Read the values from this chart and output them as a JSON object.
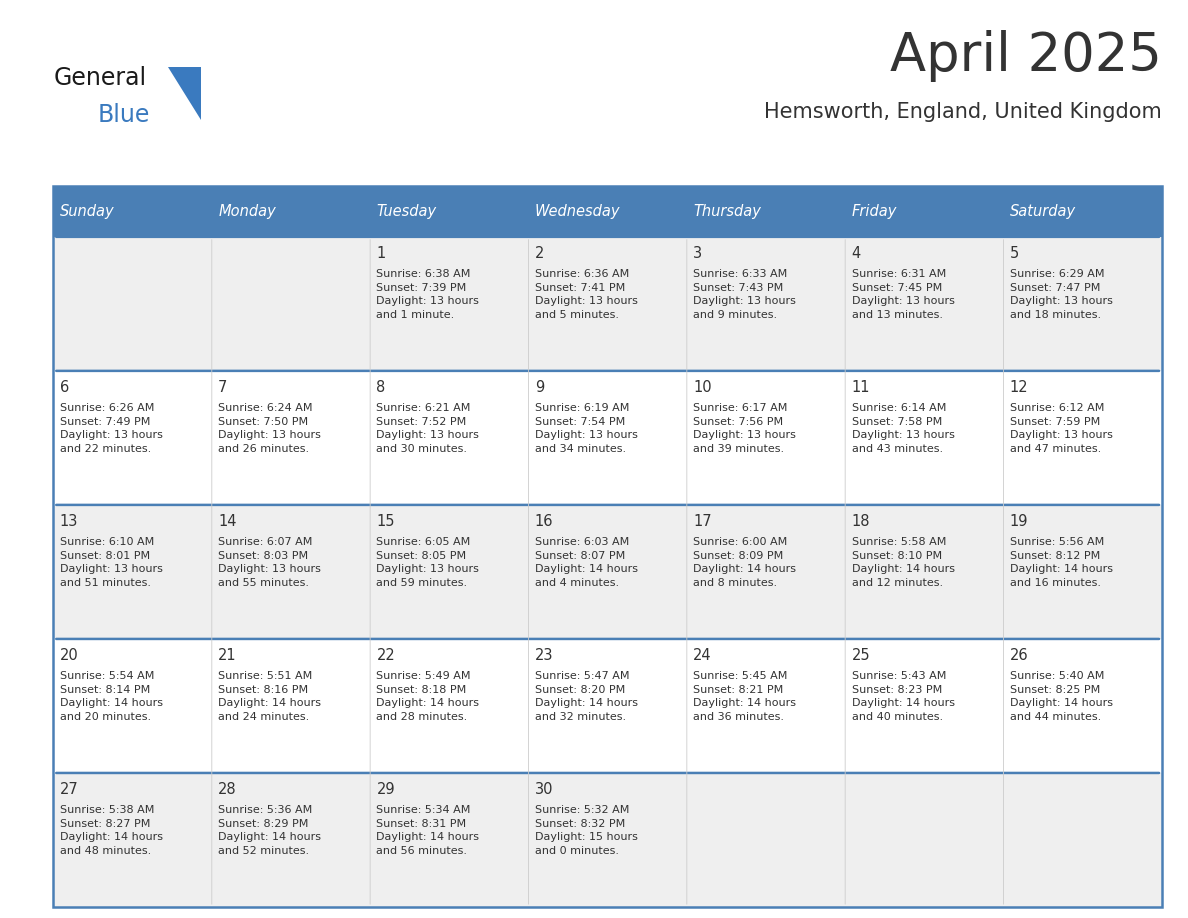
{
  "title": "April 2025",
  "subtitle": "Hemsworth, England, United Kingdom",
  "header_bg": "#4a7fb5",
  "header_text": "#FFFFFF",
  "cell_bg_odd": "#EFEFEF",
  "cell_bg_even": "#FFFFFF",
  "border_color": "#4a7fb5",
  "text_color": "#333333",
  "day_headers": [
    "Sunday",
    "Monday",
    "Tuesday",
    "Wednesday",
    "Thursday",
    "Friday",
    "Saturday"
  ],
  "weeks": [
    [
      {
        "day": "",
        "info": ""
      },
      {
        "day": "",
        "info": ""
      },
      {
        "day": "1",
        "info": "Sunrise: 6:38 AM\nSunset: 7:39 PM\nDaylight: 13 hours\nand 1 minute."
      },
      {
        "day": "2",
        "info": "Sunrise: 6:36 AM\nSunset: 7:41 PM\nDaylight: 13 hours\nand 5 minutes."
      },
      {
        "day": "3",
        "info": "Sunrise: 6:33 AM\nSunset: 7:43 PM\nDaylight: 13 hours\nand 9 minutes."
      },
      {
        "day": "4",
        "info": "Sunrise: 6:31 AM\nSunset: 7:45 PM\nDaylight: 13 hours\nand 13 minutes."
      },
      {
        "day": "5",
        "info": "Sunrise: 6:29 AM\nSunset: 7:47 PM\nDaylight: 13 hours\nand 18 minutes."
      }
    ],
    [
      {
        "day": "6",
        "info": "Sunrise: 6:26 AM\nSunset: 7:49 PM\nDaylight: 13 hours\nand 22 minutes."
      },
      {
        "day": "7",
        "info": "Sunrise: 6:24 AM\nSunset: 7:50 PM\nDaylight: 13 hours\nand 26 minutes."
      },
      {
        "day": "8",
        "info": "Sunrise: 6:21 AM\nSunset: 7:52 PM\nDaylight: 13 hours\nand 30 minutes."
      },
      {
        "day": "9",
        "info": "Sunrise: 6:19 AM\nSunset: 7:54 PM\nDaylight: 13 hours\nand 34 minutes."
      },
      {
        "day": "10",
        "info": "Sunrise: 6:17 AM\nSunset: 7:56 PM\nDaylight: 13 hours\nand 39 minutes."
      },
      {
        "day": "11",
        "info": "Sunrise: 6:14 AM\nSunset: 7:58 PM\nDaylight: 13 hours\nand 43 minutes."
      },
      {
        "day": "12",
        "info": "Sunrise: 6:12 AM\nSunset: 7:59 PM\nDaylight: 13 hours\nand 47 minutes."
      }
    ],
    [
      {
        "day": "13",
        "info": "Sunrise: 6:10 AM\nSunset: 8:01 PM\nDaylight: 13 hours\nand 51 minutes."
      },
      {
        "day": "14",
        "info": "Sunrise: 6:07 AM\nSunset: 8:03 PM\nDaylight: 13 hours\nand 55 minutes."
      },
      {
        "day": "15",
        "info": "Sunrise: 6:05 AM\nSunset: 8:05 PM\nDaylight: 13 hours\nand 59 minutes."
      },
      {
        "day": "16",
        "info": "Sunrise: 6:03 AM\nSunset: 8:07 PM\nDaylight: 14 hours\nand 4 minutes."
      },
      {
        "day": "17",
        "info": "Sunrise: 6:00 AM\nSunset: 8:09 PM\nDaylight: 14 hours\nand 8 minutes."
      },
      {
        "day": "18",
        "info": "Sunrise: 5:58 AM\nSunset: 8:10 PM\nDaylight: 14 hours\nand 12 minutes."
      },
      {
        "day": "19",
        "info": "Sunrise: 5:56 AM\nSunset: 8:12 PM\nDaylight: 14 hours\nand 16 minutes."
      }
    ],
    [
      {
        "day": "20",
        "info": "Sunrise: 5:54 AM\nSunset: 8:14 PM\nDaylight: 14 hours\nand 20 minutes."
      },
      {
        "day": "21",
        "info": "Sunrise: 5:51 AM\nSunset: 8:16 PM\nDaylight: 14 hours\nand 24 minutes."
      },
      {
        "day": "22",
        "info": "Sunrise: 5:49 AM\nSunset: 8:18 PM\nDaylight: 14 hours\nand 28 minutes."
      },
      {
        "day": "23",
        "info": "Sunrise: 5:47 AM\nSunset: 8:20 PM\nDaylight: 14 hours\nand 32 minutes."
      },
      {
        "day": "24",
        "info": "Sunrise: 5:45 AM\nSunset: 8:21 PM\nDaylight: 14 hours\nand 36 minutes."
      },
      {
        "day": "25",
        "info": "Sunrise: 5:43 AM\nSunset: 8:23 PM\nDaylight: 14 hours\nand 40 minutes."
      },
      {
        "day": "26",
        "info": "Sunrise: 5:40 AM\nSunset: 8:25 PM\nDaylight: 14 hours\nand 44 minutes."
      }
    ],
    [
      {
        "day": "27",
        "info": "Sunrise: 5:38 AM\nSunset: 8:27 PM\nDaylight: 14 hours\nand 48 minutes."
      },
      {
        "day": "28",
        "info": "Sunrise: 5:36 AM\nSunset: 8:29 PM\nDaylight: 14 hours\nand 52 minutes."
      },
      {
        "day": "29",
        "info": "Sunrise: 5:34 AM\nSunset: 8:31 PM\nDaylight: 14 hours\nand 56 minutes."
      },
      {
        "day": "30",
        "info": "Sunrise: 5:32 AM\nSunset: 8:32 PM\nDaylight: 15 hours\nand 0 minutes."
      },
      {
        "day": "",
        "info": ""
      },
      {
        "day": "",
        "info": ""
      },
      {
        "day": "",
        "info": ""
      }
    ]
  ],
  "logo_color_general": "#1a1a1a",
  "logo_color_blue": "#3a7abf",
  "logo_triangle_color": "#3a7abf",
  "logo_text_general": "General",
  "logo_text_blue": "Blue"
}
